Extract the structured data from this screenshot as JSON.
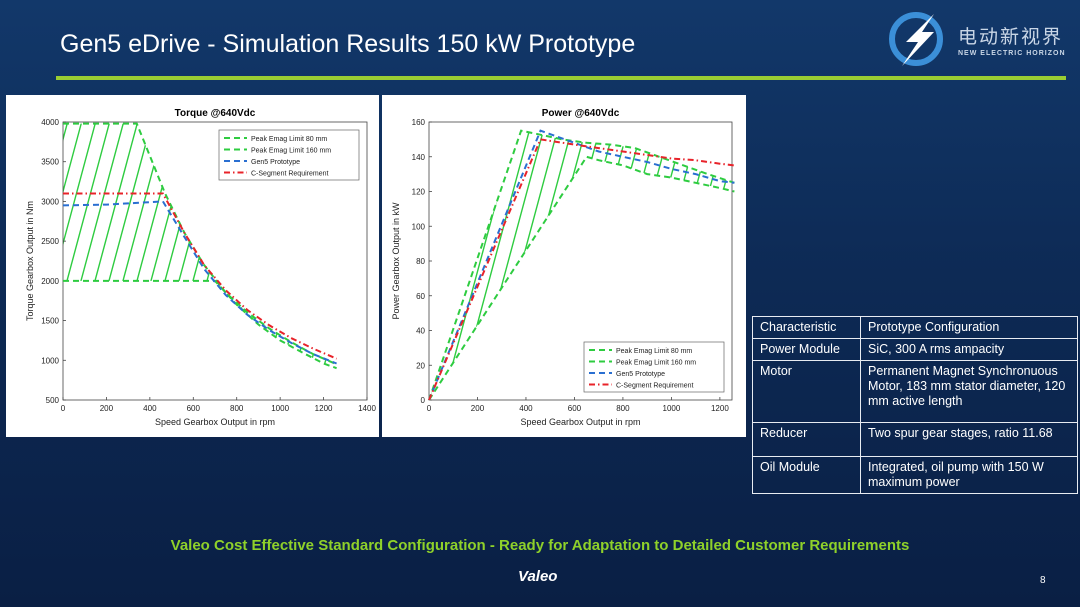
{
  "slide": {
    "title": "Gen5 eDrive - Simulation Results 150 kW Prototype",
    "tagline": "Valeo Cost Effective Standard Configuration - Ready for Adaptation to Detailed Customer Requirements",
    "footer_logo": "Valeo",
    "page_number": "8",
    "logo_cn": "电动新视界",
    "logo_en": "NEW ELECTRIC HORIZON",
    "accent_color": "#9acd32"
  },
  "spec_table": {
    "headers": [
      "Characteristic",
      "Prototype Configuration"
    ],
    "rows": [
      [
        "Power Module",
        "SiC, 300 A rms ampacity"
      ],
      [
        "Motor",
        "Permanent Magnet Synchronuous Motor, 183 mm stator diameter, 120 mm active length"
      ],
      [
        "Reducer",
        "Two spur gear stages, ratio 11.68"
      ],
      [
        "Oil Module",
        "Integrated, oil pump with 150 W maximum power"
      ]
    ]
  },
  "chart_data": [
    {
      "type": "line",
      "title": "Torque @640Vdc",
      "xlabel": "Speed Gearbox Output in rpm",
      "ylabel": "Torque Gearbox Output in Nm",
      "xlim": [
        0,
        1400
      ],
      "ylim": [
        500,
        4000
      ],
      "xticks": [
        "0",
        "200",
        "400",
        "600",
        "800",
        "1000",
        "1200",
        "1400"
      ],
      "yticks": [
        "500",
        "1000",
        "1500",
        "2000",
        "2500",
        "3000",
        "3500",
        "4000"
      ],
      "legend_position": "top-right",
      "series": [
        {
          "name": "Peak Emag Limit 80 mm",
          "color": "#2ecc40",
          "dash": "6 4",
          "x": [
            0,
            700,
            800,
            900,
            1000,
            1100,
            1200,
            1260
          ],
          "y": [
            2000,
            2000,
            1700,
            1450,
            1250,
            1100,
            960,
            900
          ]
        },
        {
          "name": "Peak Emag Limit 160 mm",
          "color": "#2ecc40",
          "dash": "6 4",
          "x": [
            0,
            340,
            470,
            560,
            650,
            750,
            850,
            950,
            1050,
            1150,
            1260
          ],
          "y": [
            3980,
            3980,
            3100,
            2600,
            2200,
            1850,
            1600,
            1400,
            1230,
            1080,
            950
          ]
        },
        {
          "name": "Gen5 Prototype",
          "color": "#2a6fd1",
          "dash": "6 4",
          "x": [
            0,
            200,
            460,
            560,
            650,
            750,
            850,
            950,
            1050,
            1150,
            1260
          ],
          "y": [
            2950,
            2960,
            3000,
            2550,
            2150,
            1820,
            1570,
            1380,
            1220,
            1080,
            960
          ]
        },
        {
          "name": "C-Segment Requirement",
          "color": "#e8232a",
          "dash": "6 3 1.5 3",
          "x": [
            0,
            460,
            560,
            650,
            750,
            850,
            950,
            1050,
            1150,
            1260
          ],
          "y": [
            3100,
            3100,
            2600,
            2200,
            1880,
            1630,
            1440,
            1280,
            1150,
            1020
          ]
        }
      ],
      "hatch_region": "between Peak Emag Limit 80 mm and Peak Emag Limit 160 mm"
    },
    {
      "type": "line",
      "title": "Power @640Vdc",
      "xlabel": "Speed Gearbox Output in rpm",
      "ylabel": "Power Gearbox Output in kW",
      "xlim": [
        0,
        1250
      ],
      "ylim": [
        0,
        160
      ],
      "xticks": [
        "0",
        "200",
        "400",
        "600",
        "800",
        "1000",
        "1200"
      ],
      "yticks": [
        "0",
        "20",
        "40",
        "60",
        "80",
        "100",
        "120",
        "140",
        "160"
      ],
      "legend_position": "bottom-right",
      "series": [
        {
          "name": "Peak Emag Limit 80 mm",
          "color": "#2ecc40",
          "dash": "6 4",
          "x": [
            0,
            650,
            700,
            800,
            900,
            1000,
            1100,
            1200,
            1260
          ],
          "y": [
            0,
            140,
            138,
            135,
            130,
            128,
            125,
            122,
            120
          ]
        },
        {
          "name": "Peak Emag Limit 160 mm",
          "color": "#2ecc40",
          "dash": "6 4",
          "x": [
            0,
            380,
            450,
            550,
            650,
            750,
            850,
            950,
            1050,
            1150,
            1260
          ],
          "y": [
            0,
            155,
            153,
            150,
            148,
            147,
            145,
            140,
            135,
            130,
            125
          ]
        },
        {
          "name": "Gen5 Prototype",
          "color": "#2a6fd1",
          "dash": "6 4",
          "x": [
            0,
            460,
            520,
            600,
            700,
            800,
            900,
            1000,
            1100,
            1200,
            1260
          ],
          "y": [
            0,
            155,
            152,
            148,
            143,
            140,
            137,
            133,
            130,
            126,
            125
          ]
        },
        {
          "name": "C-Segment Requirement",
          "color": "#e8232a",
          "dash": "6 3 1.5 3",
          "x": [
            0,
            460,
            600,
            700,
            800,
            900,
            1000,
            1100,
            1200,
            1260
          ],
          "y": [
            0,
            150,
            147,
            145,
            143,
            141,
            139,
            138,
            136,
            135
          ]
        }
      ],
      "hatch_region": "between Peak Emag Limit 80 mm and Peak Emag Limit 160 mm"
    }
  ]
}
